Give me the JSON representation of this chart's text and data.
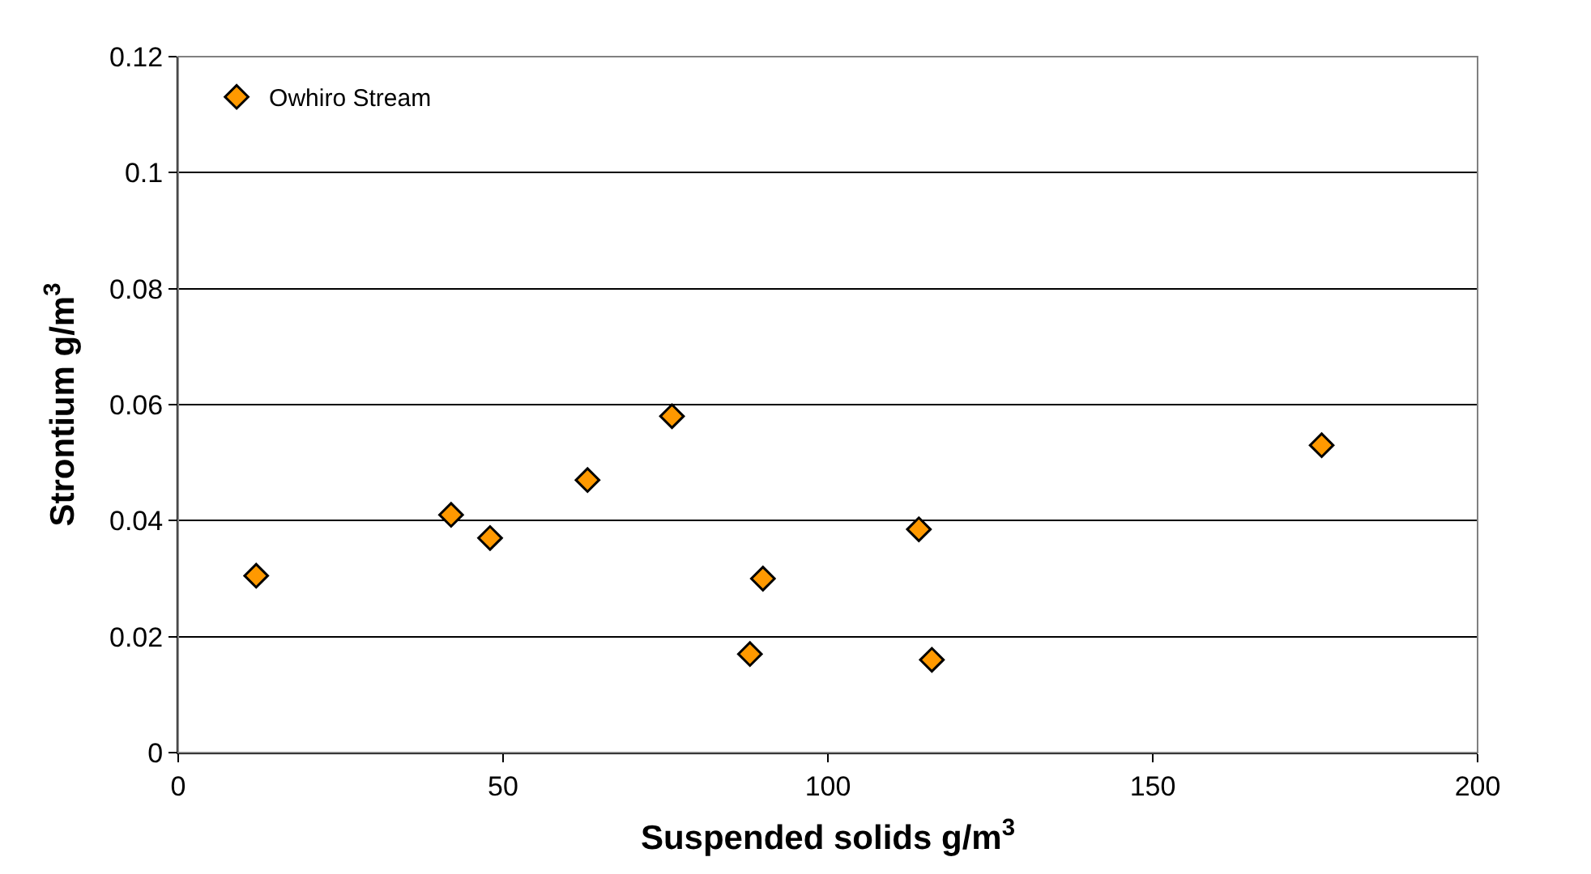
{
  "chart_data": {
    "type": "scatter",
    "xlabel": "Suspended solids g/m$^{3}$",
    "ylabel": "Strontium g/m$^{3}$",
    "series": [
      {
        "name": "Owhiro Stream",
        "color": "#ff9900",
        "x": [
          12,
          42,
          48,
          63,
          76,
          88,
          90,
          114,
          116,
          176
        ],
        "values": [
          0.0305,
          0.041,
          0.037,
          0.047,
          0.058,
          0.017,
          0.03,
          0.0385,
          0.016,
          0.053
        ]
      }
    ],
    "xlim": [
      0,
      200
    ],
    "xticks": [
      0,
      50,
      100,
      150,
      200
    ],
    "ylim": [
      0,
      0.12
    ],
    "yticks": [
      0,
      0.02,
      0.04,
      0.06,
      0.08,
      0.1,
      0.12
    ],
    "grid": "y",
    "legend": "top left",
    "marker": "diamond"
  }
}
